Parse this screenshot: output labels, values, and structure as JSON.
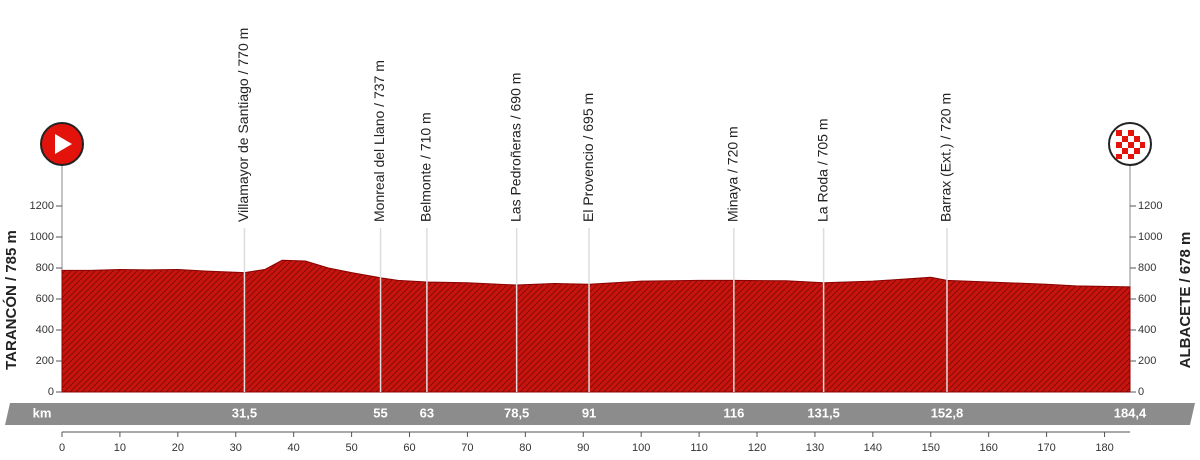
{
  "chart_data": {
    "type": "area",
    "color": "#c8140e",
    "start_label": "TARANCÓN / 785 m",
    "finish_label": "ALBACETE / 678 m",
    "km_label": "km",
    "x": [
      0,
      5,
      10,
      15,
      20,
      25,
      31.5,
      35,
      38,
      42,
      46,
      50,
      55,
      58,
      63,
      70,
      78.5,
      85,
      91,
      100,
      110,
      116,
      125,
      131.5,
      140,
      150,
      152.8,
      160,
      170,
      175,
      184.4
    ],
    "values": [
      785,
      785,
      790,
      788,
      790,
      780,
      770,
      790,
      850,
      845,
      800,
      770,
      737,
      720,
      710,
      705,
      690,
      700,
      695,
      715,
      720,
      720,
      718,
      705,
      715,
      740,
      720,
      710,
      695,
      685,
      678
    ],
    "xlim": [
      0,
      184.4
    ],
    "xticks": [
      0,
      10,
      20,
      30,
      40,
      50,
      60,
      70,
      80,
      90,
      100,
      110,
      120,
      130,
      140,
      150,
      160,
      170,
      180
    ],
    "ylim": [
      0,
      1200
    ],
    "yticks": [
      0,
      200,
      400,
      600,
      800,
      1000,
      1200
    ],
    "waypoints": [
      {
        "name": "Villamayor de Santiago / 770 m",
        "km": {
          "value": 31.5,
          "label": "31,5"
        }
      },
      {
        "name": "Monreal del Llano / 737 m",
        "km": 55
      },
      {
        "name": "Belmonte / 710 m",
        "km": 63
      },
      {
        "name": "Las Pedroñeras / 690 m",
        "km": {
          "value": 78.5,
          "label": "78,5"
        }
      },
      {
        "name": "El Provencio / 695 m",
        "km": 91
      },
      {
        "name": "Minaya / 720 m",
        "km": 116
      },
      {
        "name": "La Roda / 705 m",
        "km": {
          "value": 131.5,
          "label": "131,5"
        }
      },
      {
        "name": "Barrax (Ext.) / 720 m",
        "km": {
          "value": 152.8,
          "label": "152,8"
        }
      },
      {
        "name": "",
        "km": {
          "value": 184.4,
          "label": "184,4"
        }
      }
    ]
  }
}
